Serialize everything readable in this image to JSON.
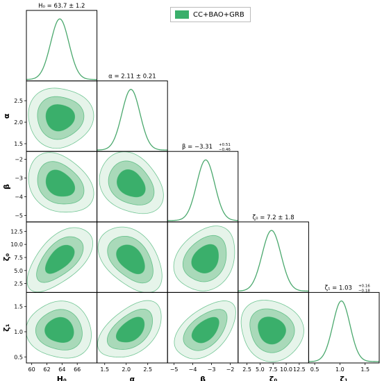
{
  "legend": {
    "label": "CC+BAO+GRB",
    "color": "#3aaf6b"
  },
  "colors": {
    "sigma1": "#3aaf6b",
    "sigma2": "#a9d9b9",
    "sigma3": "#e6f4ea",
    "line": "#4aa86d"
  },
  "chart_data": {
    "type": "corner",
    "series_name": "CC+BAO+GRB",
    "parameters": [
      {
        "name": "H0",
        "label": "H₀",
        "title": "H₀ = 63.7 ± 1.2",
        "mean": 63.7,
        "sigma": 1.2,
        "range": [
          59.3,
          68.6
        ],
        "ticks": [
          60,
          62,
          64,
          66
        ],
        "tick_labels": [
          "60",
          "62",
          "64",
          "66"
        ]
      },
      {
        "name": "alpha",
        "label": "α",
        "title": "α = 2.11 ± 0.21",
        "mean": 2.11,
        "sigma": 0.21,
        "range": [
          1.32,
          2.96
        ],
        "ticks": [
          1.5,
          2.0,
          2.5
        ],
        "tick_labels": [
          "1.5",
          "2.0",
          "2.5"
        ]
      },
      {
        "name": "beta",
        "label": "β",
        "title": "β = −3.31",
        "title_sup": "+0.51",
        "title_sub": "−0.46",
        "mean": -3.31,
        "sigma": 0.48,
        "range": [
          -5.35,
          -1.58
        ],
        "ticks": [
          -5,
          -4,
          -3,
          -2
        ],
        "tick_labels": [
          "−5",
          "−4",
          "−3",
          "−2"
        ]
      },
      {
        "name": "zeta0",
        "label": "ζ₀",
        "title": "ζ₀ = 7.2 ± 1.8",
        "mean": 7.2,
        "sigma": 1.8,
        "range": [
          0.8,
          14.3
        ],
        "ticks": [
          2.5,
          5.0,
          7.5,
          10.0,
          12.5
        ],
        "tick_labels": [
          "2.5",
          "5.0",
          "7.5",
          "10.0",
          "12.5"
        ]
      },
      {
        "name": "zeta1",
        "label": "ζ₁",
        "title": "ζ₁ = 1.03",
        "title_sup": "+0.16",
        "title_sub": "−0.18",
        "mean": 1.03,
        "sigma": 0.17,
        "range": [
          0.38,
          1.78
        ],
        "ticks": [
          0.5,
          1.0,
          1.5
        ],
        "tick_labels": [
          "0.5",
          "1.0",
          "1.5"
        ]
      }
    ],
    "correlations": {
      "alpha-H0": 0.0,
      "beta-H0": -0.25,
      "beta-alpha": -0.2,
      "zeta0-H0": 0.55,
      "zeta0-alpha": -0.35,
      "zeta0-beta": 0.3,
      "zeta1-H0": -0.05,
      "zeta1-alpha": 0.5,
      "zeta1-beta": 0.55,
      "zeta1-zeta0": -0.1
    },
    "contour_levels": [
      "68%",
      "95%",
      "99.7%"
    ]
  }
}
